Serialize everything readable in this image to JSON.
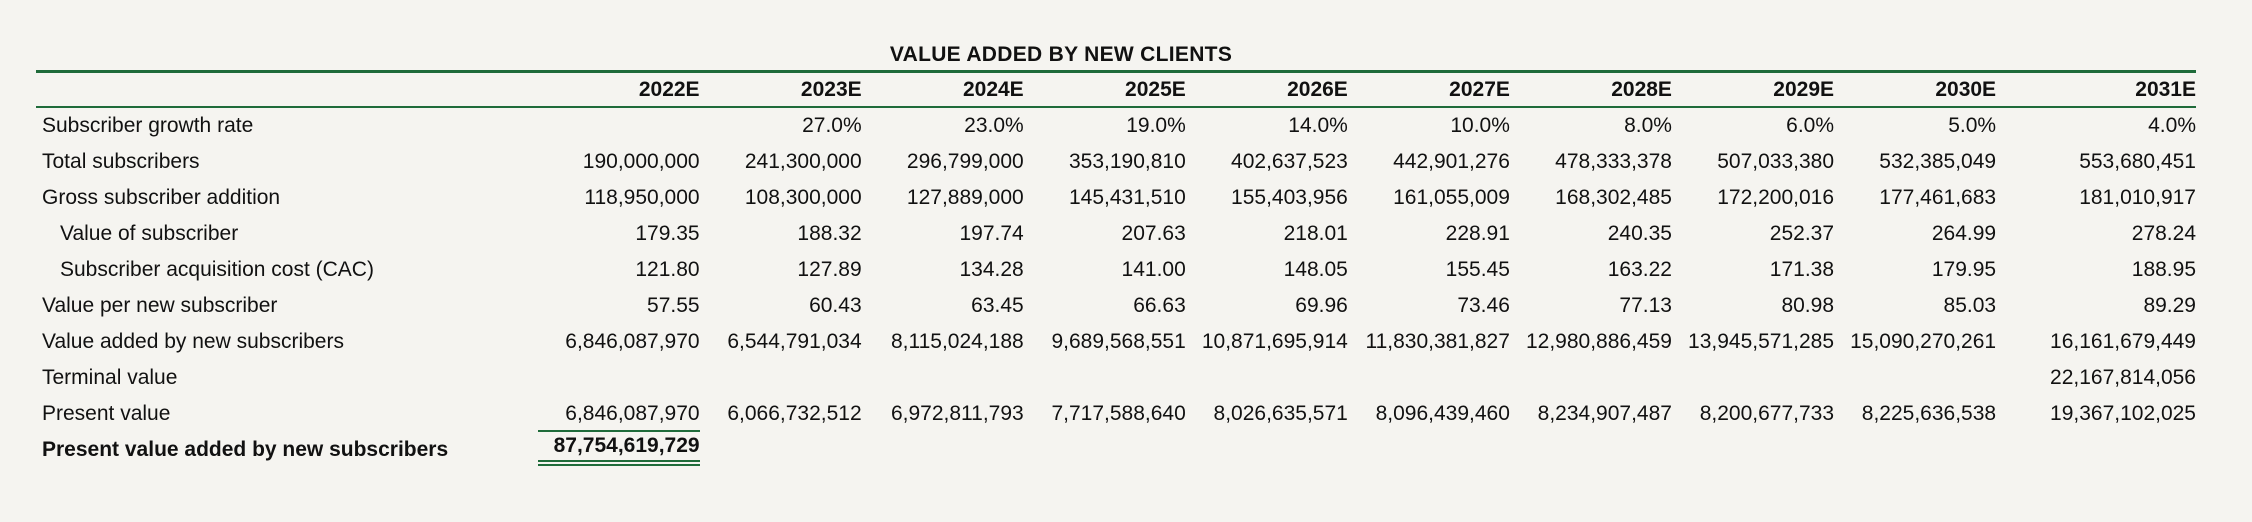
{
  "title": "VALUE ADDED BY NEW CLIENTS",
  "colors": {
    "accent": "#1f6b3a",
    "background": "#f5f4f0",
    "text": "#111111"
  },
  "years": [
    "2022E",
    "2023E",
    "2024E",
    "2025E",
    "2026E",
    "2027E",
    "2028E",
    "2029E",
    "2030E",
    "2031E"
  ],
  "rows": [
    {
      "label": "Subscriber growth rate",
      "values": [
        "",
        "27.0%",
        "23.0%",
        "19.0%",
        "14.0%",
        "10.0%",
        "8.0%",
        "6.0%",
        "5.0%",
        "4.0%"
      ]
    },
    {
      "label": "Total subscribers",
      "values": [
        "190,000,000",
        "241,300,000",
        "296,799,000",
        "353,190,810",
        "402,637,523",
        "442,901,276",
        "478,333,378",
        "507,033,380",
        "532,385,049",
        "553,680,451"
      ]
    },
    {
      "label": "Gross subscriber addition",
      "values": [
        "118,950,000",
        "108,300,000",
        "127,889,000",
        "145,431,510",
        "155,403,956",
        "161,055,009",
        "168,302,485",
        "172,200,016",
        "177,461,683",
        "181,010,917"
      ]
    },
    {
      "label": "Value of subscriber",
      "values": [
        "179.35",
        "188.32",
        "197.74",
        "207.63",
        "218.01",
        "228.91",
        "240.35",
        "252.37",
        "264.99",
        "278.24"
      ]
    },
    {
      "label": "Subscriber acquisition cost (CAC)",
      "values": [
        "121.80",
        "127.89",
        "134.28",
        "141.00",
        "148.05",
        "155.45",
        "163.22",
        "171.38",
        "179.95",
        "188.95"
      ]
    },
    {
      "label": "Value per new subscriber",
      "values": [
        "57.55",
        "60.43",
        "63.45",
        "66.63",
        "69.96",
        "73.46",
        "77.13",
        "80.98",
        "85.03",
        "89.29"
      ]
    },
    {
      "label": "Value added by new subscribers",
      "values": [
        "6,846,087,970",
        "6,544,791,034",
        "8,115,024,188",
        "9,689,568,551",
        "10,871,695,914",
        "11,830,381,827",
        "12,980,886,459",
        "13,945,571,285",
        "15,090,270,261",
        "16,161,679,449"
      ]
    },
    {
      "label": "Terminal value",
      "values": [
        "",
        "",
        "",
        "",
        "",
        "",
        "",
        "",
        "",
        "22,167,814,056"
      ]
    },
    {
      "label": "Present value",
      "values": [
        "6,846,087,970",
        "6,066,732,512",
        "6,972,811,793",
        "7,717,588,640",
        "8,026,635,571",
        "8,096,439,460",
        "8,234,907,487",
        "8,200,677,733",
        "8,225,636,538",
        "19,367,102,025"
      ]
    }
  ],
  "total": {
    "label": "Present value added by new subscribers",
    "value": "87,754,619,729"
  }
}
